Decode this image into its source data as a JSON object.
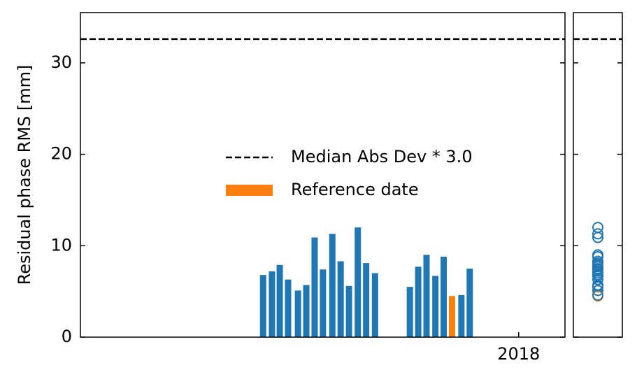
{
  "chart_data": {
    "type": "bar",
    "y_label": "Residual phase RMS [mm]",
    "x": [
      2017.509,
      2017.526,
      2017.541,
      2017.557,
      2017.576,
      2017.592,
      2017.608,
      2017.624,
      2017.642,
      2017.658,
      2017.674,
      2017.691,
      2017.707,
      2017.724,
      2017.791,
      2017.807,
      2017.823,
      2017.84,
      2017.856,
      2017.872,
      2017.89,
      2017.906
    ],
    "values": [
      6.8,
      7.2,
      7.9,
      6.3,
      5.1,
      5.7,
      10.9,
      7.4,
      11.3,
      8.3,
      5.6,
      12.0,
      8.1,
      7.0,
      5.5,
      7.7,
      9.0,
      6.7,
      8.8,
      4.5,
      4.6,
      7.5
    ],
    "colors": [
      "#1f77b4",
      "#1f77b4",
      "#1f77b4",
      "#1f77b4",
      "#1f77b4",
      "#1f77b4",
      "#1f77b4",
      "#1f77b4",
      "#1f77b4",
      "#1f77b4",
      "#1f77b4",
      "#1f77b4",
      "#1f77b4",
      "#1f77b4",
      "#1f77b4",
      "#1f77b4",
      "#1f77b4",
      "#1f77b4",
      "#1f77b4",
      "#ff7f0e",
      "#1f77b4",
      "#1f77b4"
    ],
    "threshold": 32.6,
    "legend": [
      {
        "label": "Median Abs Dev * 3.0",
        "color": "#000000",
        "style": "dashed"
      },
      {
        "label": "Reference date",
        "color": "#ff7f0e",
        "style": "patch"
      }
    ],
    "xlim": [
      2017.158,
      2018.089
    ],
    "xticks": [
      {
        "value": 2018,
        "label": "2018"
      }
    ],
    "ylim": [
      0,
      35.5
    ],
    "yticks": [
      0,
      10,
      20,
      30
    ]
  }
}
